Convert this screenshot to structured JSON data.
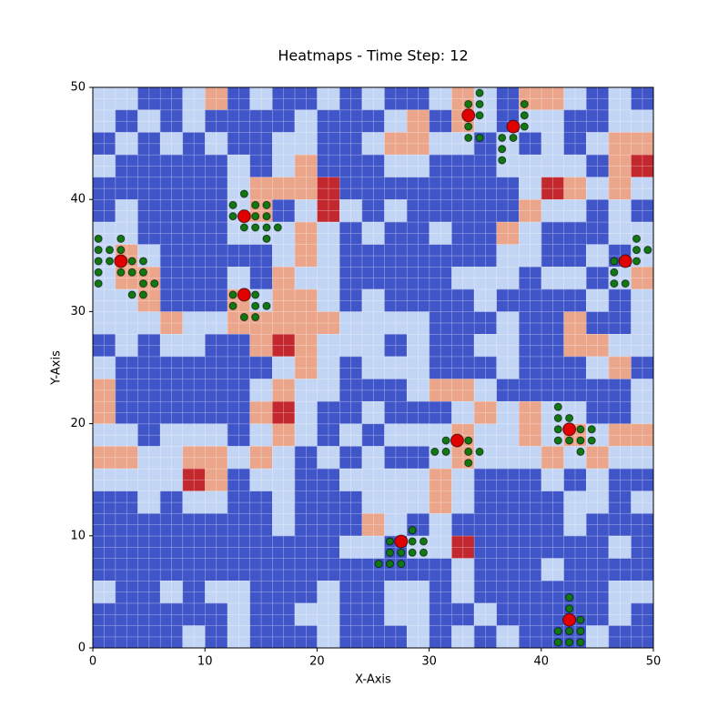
{
  "chart_data": {
    "type": "heatmap",
    "title": "Heatmaps - Time Step: 12",
    "x_label": "X-Axis",
    "y_label": "Y-Axis",
    "xlim": [
      0,
      50
    ],
    "ylim": [
      0,
      50
    ],
    "xticks": [
      0,
      10,
      20,
      30,
      40,
      50
    ],
    "yticks": [
      0,
      10,
      20,
      30,
      40,
      50
    ],
    "colors": [
      "#4055c8",
      "#c3d5f4",
      "#eba58a",
      "#c3282f"
    ],
    "z": [
      [
        1,
        1,
        0,
        0,
        1,
        2,
        0,
        1,
        0,
        0,
        1,
        0,
        1,
        0,
        0,
        1,
        2,
        1,
        0,
        2,
        2,
        1,
        0,
        1,
        0
      ],
      [
        1,
        0,
        1,
        0,
        1,
        0,
        0,
        0,
        0,
        1,
        0,
        0,
        0,
        1,
        2,
        0,
        2,
        1,
        0,
        1,
        1,
        0,
        0,
        1,
        1
      ],
      [
        0,
        1,
        0,
        1,
        0,
        1,
        0,
        0,
        1,
        1,
        0,
        0,
        1,
        2,
        2,
        1,
        1,
        0,
        1,
        0,
        1,
        0,
        1,
        2,
        2
      ],
      [
        1,
        0,
        0,
        0,
        0,
        0,
        1,
        0,
        1,
        2,
        0,
        0,
        0,
        1,
        1,
        0,
        0,
        0,
        1,
        1,
        1,
        1,
        0,
        2,
        3
      ],
      [
        0,
        0,
        0,
        0,
        0,
        0,
        1,
        2,
        2,
        2,
        3,
        0,
        0,
        0,
        0,
        0,
        0,
        0,
        0,
        1,
        3,
        2,
        1,
        2,
        1
      ],
      [
        0,
        1,
        0,
        0,
        0,
        0,
        1,
        2,
        0,
        1,
        3,
        1,
        0,
        1,
        0,
        0,
        0,
        0,
        0,
        2,
        1,
        1,
        0,
        1,
        0
      ],
      [
        1,
        1,
        0,
        0,
        0,
        0,
        1,
        1,
        1,
        2,
        1,
        0,
        1,
        0,
        0,
        1,
        0,
        0,
        2,
        1,
        0,
        0,
        0,
        1,
        1
      ],
      [
        1,
        2,
        1,
        0,
        0,
        0,
        0,
        0,
        1,
        2,
        1,
        0,
        0,
        0,
        0,
        0,
        0,
        0,
        1,
        1,
        0,
        0,
        1,
        0,
        1
      ],
      [
        1,
        2,
        2,
        0,
        0,
        0,
        1,
        0,
        2,
        1,
        1,
        0,
        0,
        0,
        0,
        0,
        1,
        1,
        1,
        0,
        1,
        1,
        0,
        1,
        2
      ],
      [
        1,
        1,
        2,
        0,
        0,
        0,
        2,
        1,
        2,
        2,
        1,
        0,
        1,
        0,
        0,
        0,
        0,
        1,
        0,
        0,
        0,
        0,
        1,
        0,
        1
      ],
      [
        1,
        1,
        1,
        2,
        1,
        1,
        2,
        2,
        2,
        2,
        2,
        1,
        1,
        1,
        1,
        0,
        0,
        0,
        1,
        0,
        0,
        2,
        0,
        0,
        1
      ],
      [
        0,
        1,
        0,
        1,
        1,
        0,
        0,
        2,
        3,
        2,
        1,
        1,
        1,
        0,
        1,
        0,
        0,
        1,
        1,
        0,
        0,
        2,
        2,
        1,
        1
      ],
      [
        1,
        0,
        0,
        0,
        0,
        0,
        0,
        0,
        1,
        2,
        1,
        0,
        1,
        1,
        1,
        0,
        0,
        0,
        1,
        0,
        0,
        0,
        1,
        2,
        0
      ],
      [
        2,
        0,
        0,
        0,
        0,
        0,
        0,
        1,
        2,
        1,
        1,
        0,
        0,
        0,
        1,
        2,
        2,
        1,
        0,
        0,
        0,
        0,
        0,
        0,
        1
      ],
      [
        2,
        0,
        0,
        0,
        0,
        0,
        0,
        2,
        3,
        1,
        0,
        0,
        1,
        0,
        0,
        0,
        1,
        2,
        1,
        2,
        1,
        1,
        0,
        0,
        1
      ],
      [
        1,
        1,
        0,
        1,
        1,
        1,
        0,
        1,
        2,
        1,
        0,
        1,
        0,
        1,
        1,
        1,
        2,
        1,
        1,
        2,
        1,
        2,
        1,
        2,
        2
      ],
      [
        2,
        2,
        1,
        1,
        2,
        2,
        1,
        2,
        1,
        0,
        1,
        0,
        1,
        0,
        0,
        1,
        2,
        1,
        1,
        1,
        2,
        1,
        2,
        1,
        1
      ],
      [
        1,
        1,
        1,
        1,
        3,
        2,
        0,
        1,
        1,
        0,
        0,
        1,
        1,
        1,
        1,
        2,
        1,
        0,
        0,
        0,
        1,
        0,
        1,
        0,
        0
      ],
      [
        0,
        0,
        1,
        0,
        1,
        1,
        0,
        0,
        1,
        0,
        0,
        0,
        1,
        1,
        1,
        2,
        1,
        0,
        0,
        0,
        0,
        1,
        1,
        0,
        1
      ],
      [
        0,
        0,
        0,
        0,
        0,
        0,
        0,
        0,
        1,
        0,
        0,
        0,
        2,
        1,
        0,
        1,
        0,
        0,
        0,
        0,
        0,
        1,
        0,
        0,
        0
      ],
      [
        0,
        0,
        0,
        0,
        0,
        0,
        0,
        0,
        0,
        0,
        0,
        1,
        1,
        0,
        1,
        1,
        3,
        0,
        0,
        0,
        0,
        0,
        0,
        1,
        0
      ],
      [
        0,
        0,
        0,
        0,
        0,
        0,
        0,
        0,
        0,
        0,
        0,
        0,
        0,
        0,
        0,
        0,
        1,
        0,
        0,
        0,
        1,
        0,
        0,
        0,
        0
      ],
      [
        1,
        0,
        0,
        1,
        0,
        1,
        1,
        0,
        0,
        0,
        1,
        0,
        0,
        1,
        1,
        0,
        1,
        0,
        0,
        0,
        0,
        0,
        0,
        1,
        1
      ],
      [
        0,
        0,
        0,
        0,
        0,
        0,
        1,
        0,
        0,
        1,
        1,
        0,
        0,
        1,
        1,
        0,
        0,
        1,
        0,
        0,
        0,
        0,
        0,
        1,
        0
      ],
      [
        0,
        0,
        0,
        0,
        1,
        0,
        1,
        0,
        0,
        0,
        1,
        0,
        0,
        0,
        1,
        0,
        1,
        0,
        1,
        0,
        0,
        0,
        1,
        0,
        0
      ]
    ],
    "series": [
      {
        "color": "#117711",
        "size": 4,
        "x": [
          34.5,
          33.5,
          34.5,
          34.5,
          33.5,
          33.5,
          34.5,
          38.5,
          38.5,
          38.5,
          36.5,
          37.5,
          36.5,
          36.5,
          13.5,
          12.5,
          14.5,
          15.5,
          12.5,
          14.5,
          15.5,
          13.5,
          14.5,
          15.5,
          16.5,
          15.5,
          0.5,
          2.5,
          0.5,
          1.5,
          2.5,
          0.5,
          1.5,
          3.5,
          4.5,
          0.5,
          2.5,
          3.5,
          4.5,
          0.5,
          4.5,
          5.5,
          3.5,
          4.5,
          48.5,
          48.5,
          49.5,
          46.5,
          48.5,
          46.5,
          46.5,
          47.5,
          12.5,
          14.5,
          12.5,
          14.5,
          15.5,
          13.5,
          14.5,
          31.5,
          33.5,
          30.5,
          31.5,
          33.5,
          34.5,
          33.5,
          41.5,
          41.5,
          42.5,
          41.5,
          43.5,
          44.5,
          41.5,
          42.5,
          43.5,
          44.5,
          43.5,
          28.5,
          26.5,
          28.5,
          29.5,
          26.5,
          27.5,
          28.5,
          29.5,
          25.5,
          26.5,
          27.5,
          42.5,
          42.5,
          43.5,
          41.5,
          42.5,
          43.5,
          41.5,
          42.5,
          43.5
        ],
        "y": [
          49.5,
          48.5,
          48.5,
          47.5,
          46.5,
          45.5,
          45.5,
          48.5,
          47.5,
          46.5,
          45.5,
          45.5,
          44.5,
          43.5,
          40.5,
          39.5,
          39.5,
          39.5,
          38.5,
          38.5,
          38.5,
          37.5,
          37.5,
          37.5,
          37.5,
          36.5,
          36.5,
          36.5,
          35.5,
          35.5,
          35.5,
          34.5,
          34.5,
          34.5,
          34.5,
          33.5,
          33.5,
          33.5,
          33.5,
          32.5,
          32.5,
          32.5,
          31.5,
          31.5,
          36.5,
          35.5,
          35.5,
          34.5,
          34.5,
          33.5,
          32.5,
          32.5,
          31.5,
          31.5,
          30.5,
          30.5,
          30.5,
          29.5,
          29.5,
          18.5,
          18.5,
          17.5,
          17.5,
          17.5,
          17.5,
          16.5,
          21.5,
          20.5,
          20.5,
          19.5,
          19.5,
          19.5,
          18.5,
          18.5,
          18.5,
          18.5,
          17.5,
          10.5,
          9.5,
          9.5,
          9.5,
          8.5,
          8.5,
          8.5,
          8.5,
          7.5,
          7.5,
          7.5,
          4.5,
          3.5,
          2.5,
          1.5,
          1.5,
          1.5,
          0.5,
          0.5,
          0.5
        ]
      },
      {
        "color": "#e00000",
        "size": 7,
        "x": [
          33.5,
          37.5,
          13.5,
          2.5,
          47.5,
          13.5,
          32.5,
          42.5,
          27.5,
          42.5
        ],
        "y": [
          47.5,
          46.5,
          38.5,
          34.5,
          34.5,
          31.5,
          18.5,
          19.5,
          9.5,
          2.5
        ]
      }
    ]
  }
}
